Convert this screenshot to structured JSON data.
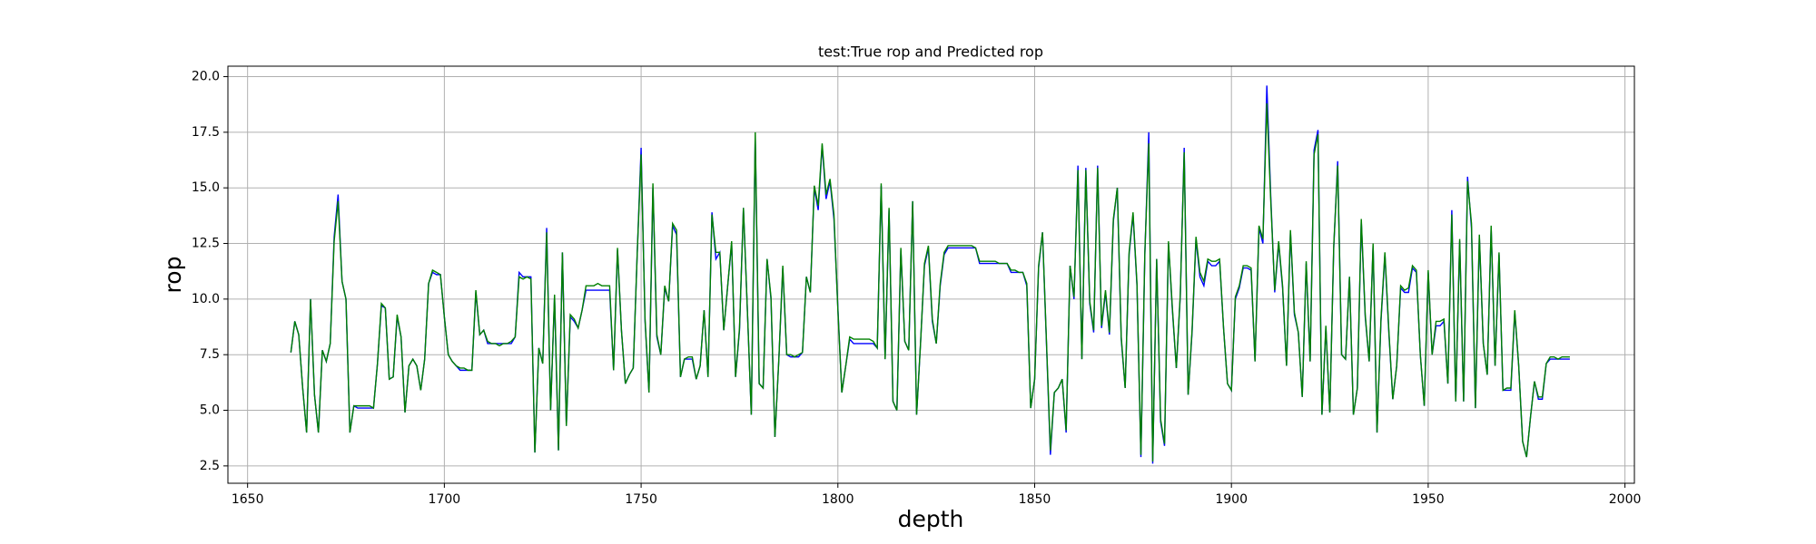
{
  "chart_data": {
    "type": "line",
    "title": "test:True rop and Predicted rop",
    "x_label": "depth",
    "y_label": "rop",
    "x": [
      1661,
      1662,
      1663,
      1664,
      1665,
      1666,
      1667,
      1668,
      1669,
      1670,
      1671,
      1672,
      1673,
      1674,
      1675,
      1676,
      1677,
      1678,
      1679,
      1680,
      1681,
      1682,
      1683,
      1684,
      1685,
      1686,
      1687,
      1688,
      1689,
      1690,
      1691,
      1692,
      1693,
      1694,
      1695,
      1696,
      1697,
      1698,
      1699,
      1700,
      1701,
      1702,
      1703,
      1704,
      1705,
      1706,
      1707,
      1708,
      1709,
      1710,
      1711,
      1712,
      1713,
      1714,
      1715,
      1716,
      1717,
      1718,
      1719,
      1720,
      1721,
      1722,
      1723,
      1724,
      1725,
      1726,
      1727,
      1728,
      1729,
      1730,
      1731,
      1732,
      1733,
      1734,
      1735,
      1736,
      1737,
      1738,
      1739,
      1740,
      1741,
      1742,
      1743,
      1744,
      1745,
      1746,
      1747,
      1748,
      1749,
      1750,
      1751,
      1752,
      1753,
      1754,
      1755,
      1756,
      1757,
      1758,
      1759,
      1760,
      1761,
      1762,
      1763,
      1764,
      1765,
      1766,
      1767,
      1768,
      1769,
      1770,
      1771,
      1772,
      1773,
      1774,
      1775,
      1776,
      1777,
      1778,
      1779,
      1780,
      1781,
      1782,
      1783,
      1784,
      1785,
      1786,
      1787,
      1788,
      1789,
      1790,
      1791,
      1792,
      1793,
      1794,
      1795,
      1796,
      1797,
      1798,
      1799,
      1800,
      1801,
      1802,
      1803,
      1804,
      1805,
      1806,
      1807,
      1808,
      1809,
      1810,
      1811,
      1812,
      1813,
      1814,
      1815,
      1816,
      1817,
      1818,
      1819,
      1820,
      1821,
      1822,
      1823,
      1824,
      1825,
      1826,
      1827,
      1828,
      1829,
      1830,
      1831,
      1832,
      1833,
      1834,
      1835,
      1836,
      1837,
      1838,
      1839,
      1840,
      1841,
      1842,
      1843,
      1844,
      1845,
      1846,
      1847,
      1848,
      1849,
      1850,
      1851,
      1852,
      1853,
      1854,
      1855,
      1856,
      1857,
      1858,
      1859,
      1860,
      1861,
      1862,
      1863,
      1864,
      1865,
      1866,
      1867,
      1868,
      1869,
      1870,
      1871,
      1872,
      1873,
      1874,
      1875,
      1876,
      1877,
      1878,
      1879,
      1880,
      1881,
      1882,
      1883,
      1884,
      1885,
      1886,
      1887,
      1888,
      1889,
      1890,
      1891,
      1892,
      1893,
      1894,
      1895,
      1896,
      1897,
      1898,
      1899,
      1900,
      1901,
      1902,
      1903,
      1904,
      1905,
      1906,
      1907,
      1908,
      1909,
      1910,
      1911,
      1912,
      1913,
      1914,
      1915,
      1916,
      1917,
      1918,
      1919,
      1920,
      1921,
      1922,
      1923,
      1924,
      1925,
      1926,
      1927,
      1928,
      1929,
      1930,
      1931,
      1932,
      1933,
      1934,
      1935,
      1936,
      1937,
      1938,
      1939,
      1940,
      1941,
      1942,
      1943,
      1944,
      1945,
      1946,
      1947,
      1948,
      1949,
      1950,
      1951,
      1952,
      1953,
      1954,
      1955,
      1956,
      1957,
      1958,
      1959,
      1960,
      1961,
      1962,
      1963,
      1964,
      1965,
      1966,
      1967,
      1968,
      1969,
      1970,
      1971,
      1972,
      1973,
      1974,
      1975,
      1976,
      1977,
      1978,
      1979,
      1980,
      1981,
      1982,
      1983,
      1984,
      1985,
      1986
    ],
    "series": [
      {
        "color": "#0000ff",
        "values": [
          7.6,
          9.0,
          8.4,
          6.0,
          4.0,
          10.0,
          5.7,
          4.0,
          7.7,
          7.2,
          8.0,
          12.8,
          14.7,
          10.8,
          10.0,
          4.0,
          5.2,
          5.1,
          5.1,
          5.1,
          5.1,
          5.1,
          7.1,
          9.7,
          9.6,
          6.4,
          6.5,
          9.2,
          8.3,
          4.9,
          7.0,
          7.3,
          7.0,
          5.9,
          7.3,
          10.7,
          11.2,
          11.1,
          11.1,
          9.2,
          7.5,
          7.2,
          7.0,
          6.8,
          6.8,
          6.8,
          6.8,
          10.3,
          8.4,
          8.6,
          8.0,
          8.0,
          8.0,
          8.0,
          8.0,
          8.0,
          8.0,
          8.3,
          11.2,
          11.0,
          11.0,
          11.0,
          3.1,
          7.8,
          7.1,
          13.2,
          5.0,
          10.1,
          3.2,
          12.1,
          4.3,
          9.2,
          9.0,
          8.7,
          9.5,
          10.4,
          10.4,
          10.4,
          10.4,
          10.4,
          10.4,
          10.4,
          6.8,
          12.2,
          8.6,
          6.2,
          6.6,
          6.9,
          12.0,
          16.8,
          9.0,
          5.8,
          15.0,
          8.3,
          7.5,
          10.5,
          9.9,
          13.3,
          12.9,
          6.5,
          7.3,
          7.3,
          7.3,
          6.4,
          7.0,
          9.5,
          6.5,
          13.9,
          11.8,
          12.1,
          8.6,
          10.6,
          12.5,
          6.5,
          8.6,
          14.1,
          9.5,
          4.8,
          17.3,
          6.2,
          6.0,
          11.8,
          10.0,
          3.8,
          7.3,
          11.4,
          7.5,
          7.4,
          7.4,
          7.4,
          7.6,
          11.0,
          10.3,
          15.0,
          14.0,
          16.9,
          14.5,
          15.3,
          13.6,
          9.6,
          5.8,
          7.0,
          8.2,
          8.0,
          8.0,
          8.0,
          8.0,
          8.0,
          8.0,
          7.8,
          15.1,
          7.3,
          14.0,
          5.4,
          5.0,
          12.2,
          8.1,
          7.7,
          14.4,
          4.8,
          8.0,
          11.5,
          12.3,
          9.0,
          8.0,
          10.6,
          12.0,
          12.3,
          12.3,
          12.3,
          12.3,
          12.3,
          12.3,
          12.3,
          12.3,
          11.6,
          11.6,
          11.6,
          11.6,
          11.6,
          11.6,
          11.6,
          11.6,
          11.2,
          11.2,
          11.2,
          11.2,
          10.6,
          5.1,
          6.4,
          11.4,
          13.0,
          8.0,
          3.0,
          5.8,
          6.0,
          6.4,
          4.0,
          11.5,
          10.0,
          16.0,
          7.3,
          15.9,
          9.8,
          8.5,
          16.0,
          8.7,
          10.3,
          8.4,
          13.5,
          15.0,
          8.2,
          6.0,
          12.0,
          13.8,
          10.6,
          2.9,
          12.0,
          17.5,
          2.6,
          11.8,
          4.5,
          3.4,
          12.5,
          9.5,
          6.9,
          10.1,
          16.8,
          5.7,
          8.5,
          12.7,
          11.0,
          10.6,
          11.7,
          11.5,
          11.5,
          11.7,
          8.7,
          6.2,
          5.9,
          10.0,
          10.5,
          11.4,
          11.4,
          11.3,
          7.2,
          13.2,
          12.5,
          19.6,
          14.6,
          10.3,
          12.5,
          10.5,
          7.0,
          13.0,
          9.3,
          8.5,
          5.6,
          11.6,
          7.2,
          16.7,
          17.6,
          4.8,
          8.7,
          4.9,
          12.3,
          16.2,
          7.5,
          7.3,
          11.0,
          4.8,
          6.0,
          13.5,
          9.2,
          7.2,
          12.4,
          4.0,
          9.0,
          12.0,
          8.5,
          5.5,
          7.0,
          10.5,
          10.3,
          10.3,
          11.4,
          11.2,
          7.5,
          5.2,
          11.2,
          7.5,
          8.8,
          8.8,
          9.0,
          6.2,
          14.0,
          5.4,
          12.6,
          5.4,
          15.5,
          13.2,
          5.1,
          12.8,
          8.0,
          6.6,
          13.2,
          7.0,
          12.0,
          5.9,
          5.9,
          5.9,
          9.4,
          7.0,
          3.6,
          2.9,
          4.7,
          6.3,
          5.5,
          5.5,
          7.1,
          7.3,
          7.3,
          7.3,
          7.3,
          7.3,
          7.3
        ]
      },
      {
        "color": "#008000",
        "values": [
          7.6,
          9.0,
          8.4,
          6.0,
          4.0,
          10.0,
          5.7,
          4.0,
          7.7,
          7.2,
          8.0,
          12.6,
          14.4,
          10.8,
          10.0,
          4.0,
          5.2,
          5.2,
          5.2,
          5.2,
          5.2,
          5.1,
          7.1,
          9.8,
          9.6,
          6.4,
          6.5,
          9.3,
          8.3,
          4.9,
          7.0,
          7.3,
          7.0,
          5.9,
          7.3,
          10.7,
          11.3,
          11.2,
          11.1,
          9.2,
          7.5,
          7.2,
          7.0,
          6.9,
          6.9,
          6.8,
          6.8,
          10.4,
          8.4,
          8.6,
          8.1,
          8.0,
          8.0,
          7.9,
          8.0,
          8.0,
          8.1,
          8.3,
          11.0,
          10.9,
          11.0,
          10.9,
          3.1,
          7.8,
          7.1,
          13.0,
          5.0,
          10.2,
          3.2,
          12.1,
          4.3,
          9.3,
          9.1,
          8.7,
          9.5,
          10.6,
          10.6,
          10.6,
          10.7,
          10.6,
          10.6,
          10.6,
          6.8,
          12.3,
          8.6,
          6.2,
          6.6,
          6.9,
          12.0,
          16.5,
          9.1,
          5.8,
          15.2,
          8.4,
          7.5,
          10.6,
          9.9,
          13.4,
          13.1,
          6.5,
          7.3,
          7.4,
          7.4,
          6.4,
          7.0,
          9.5,
          6.5,
          13.8,
          12.1,
          12.1,
          8.6,
          10.6,
          12.6,
          6.5,
          8.7,
          14.1,
          9.5,
          4.8,
          17.5,
          6.2,
          6.0,
          11.8,
          10.1,
          3.8,
          7.3,
          11.5,
          7.5,
          7.5,
          7.4,
          7.5,
          7.6,
          11.0,
          10.3,
          15.1,
          14.2,
          17.0,
          14.7,
          15.4,
          13.8,
          9.5,
          5.8,
          7.0,
          8.3,
          8.2,
          8.2,
          8.2,
          8.2,
          8.2,
          8.1,
          7.8,
          15.2,
          7.3,
          14.1,
          5.4,
          5.0,
          12.3,
          8.1,
          7.7,
          14.4,
          4.8,
          8.0,
          11.6,
          12.4,
          9.1,
          8.0,
          10.7,
          12.1,
          12.4,
          12.4,
          12.4,
          12.4,
          12.4,
          12.4,
          12.4,
          12.3,
          11.7,
          11.7,
          11.7,
          11.7,
          11.7,
          11.6,
          11.6,
          11.6,
          11.3,
          11.3,
          11.2,
          11.2,
          10.7,
          5.1,
          6.4,
          11.5,
          13.0,
          8.1,
          3.2,
          5.8,
          6.0,
          6.4,
          4.1,
          11.5,
          10.1,
          15.8,
          7.3,
          15.8,
          9.9,
          8.6,
          15.9,
          8.8,
          10.4,
          8.5,
          13.6,
          15.0,
          8.3,
          6.0,
          12.1,
          13.9,
          10.7,
          3.0,
          12.1,
          17.0,
          2.7,
          11.8,
          4.6,
          3.5,
          12.6,
          9.6,
          6.9,
          10.2,
          16.6,
          5.7,
          8.6,
          12.8,
          11.2,
          10.8,
          11.8,
          11.7,
          11.7,
          11.8,
          8.7,
          6.2,
          5.9,
          10.1,
          10.6,
          11.5,
          11.5,
          11.4,
          7.2,
          13.3,
          12.7,
          18.8,
          14.4,
          10.4,
          12.6,
          10.6,
          7.0,
          13.1,
          9.4,
          8.5,
          5.6,
          11.7,
          7.2,
          16.5,
          17.4,
          4.8,
          8.8,
          4.9,
          12.4,
          16.0,
          7.5,
          7.3,
          11.0,
          4.8,
          6.0,
          13.6,
          9.3,
          7.2,
          12.5,
          4.0,
          9.1,
          12.1,
          8.6,
          5.5,
          7.0,
          10.6,
          10.4,
          10.5,
          11.5,
          11.3,
          7.5,
          5.2,
          11.3,
          7.5,
          9.0,
          9.0,
          9.1,
          6.2,
          13.8,
          5.4,
          12.7,
          5.4,
          15.3,
          13.4,
          5.1,
          12.9,
          8.0,
          6.6,
          13.3,
          7.0,
          12.1,
          5.9,
          6.0,
          6.0,
          9.5,
          7.0,
          3.6,
          2.9,
          4.7,
          6.3,
          5.6,
          5.6,
          7.1,
          7.4,
          7.4,
          7.3,
          7.4,
          7.4,
          7.4
        ]
      }
    ],
    "xlim": [
      1645,
      2002.4
    ],
    "ylim": [
      1.72,
      20.47
    ],
    "xticks": [
      1650,
      1700,
      1750,
      1800,
      1850,
      1900,
      1950,
      2000
    ],
    "yticks": [
      2.5,
      {
        "value": 5,
        "label": "5.0"
      },
      7.5,
      {
        "value": 10,
        "label": "10.0"
      },
      12.5,
      {
        "value": 15,
        "label": "15.0"
      },
      17.5,
      {
        "value": 20,
        "label": "20.0"
      }
    ],
    "grid": true
  }
}
